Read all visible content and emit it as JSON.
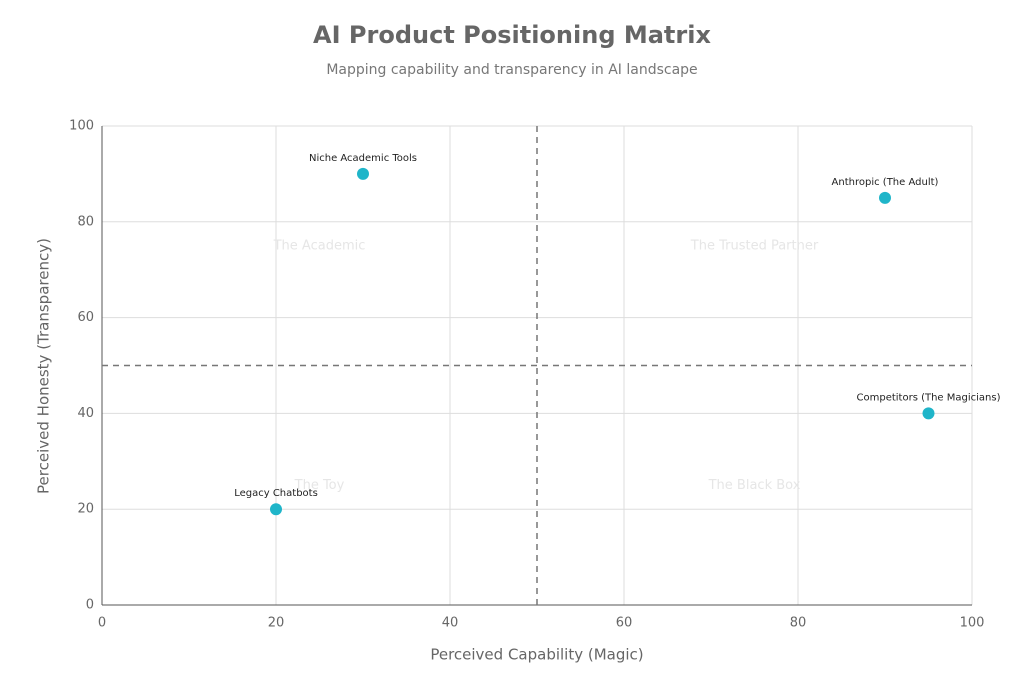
{
  "chart_data": {
    "type": "scatter",
    "title": "AI Product Positioning Matrix",
    "subtitle": "Mapping capability and transparency in AI landscape",
    "x_label": "Perceived Capability (Magic)",
    "y_label": "Perceived Honesty (Transparency)",
    "x": [
      30,
      90,
      95,
      20
    ],
    "values": [
      90,
      85,
      40,
      20
    ],
    "point_labels": [
      "Niche Academic Tools",
      "Anthropic (The Adult)",
      "Competitors (The Magicians)",
      "Legacy Chatbots"
    ],
    "color": "#1fb5c9",
    "xlim": [
      0,
      100
    ],
    "ylim": [
      0,
      100
    ],
    "xticks": [
      0,
      20,
      40,
      60,
      80,
      100
    ],
    "yticks": [
      0,
      20,
      40,
      60,
      80,
      100
    ],
    "grid": true,
    "reference_lines": {
      "x": 50,
      "y": 50
    },
    "quadrant_labels": {
      "top_left": "The Academic",
      "top_right": "The Trusted Partner",
      "bottom_left": "The Toy",
      "bottom_right": "The Black Box"
    }
  }
}
